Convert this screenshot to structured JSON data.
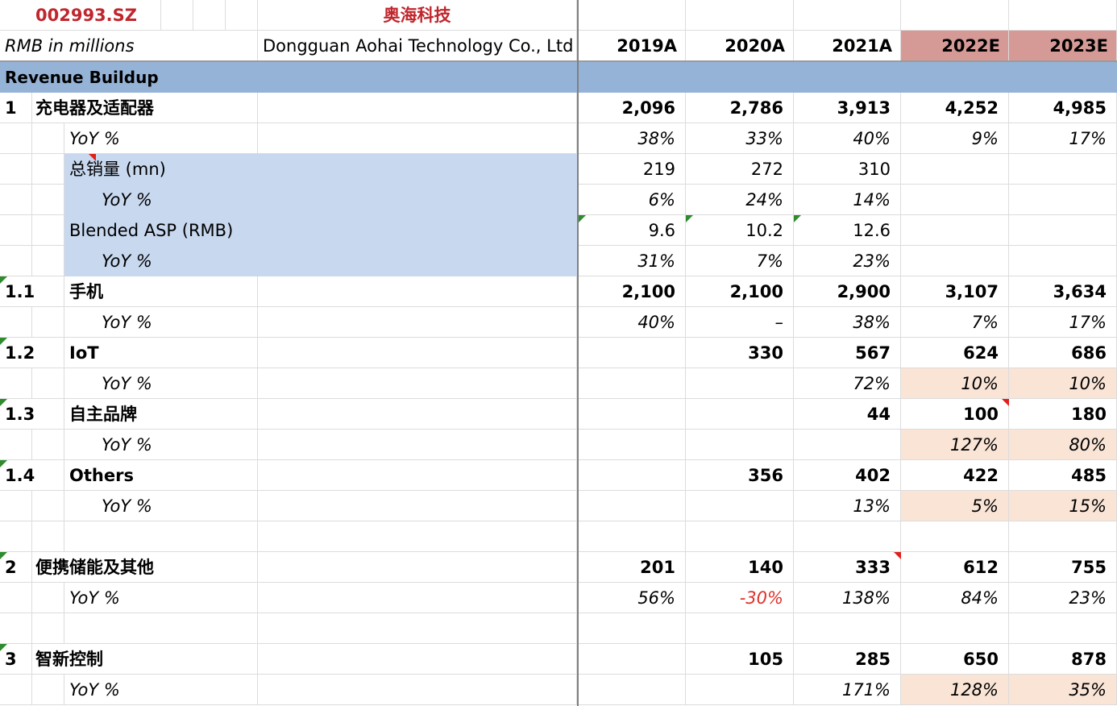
{
  "header": {
    "ticker": "002993.SZ",
    "company_cn": "奥海科技",
    "units": "RMB in millions",
    "company_en": "Dongguan Aohai Technology Co., Ltd",
    "years": [
      "2019A",
      "2020A",
      "2021A",
      "2022E",
      "2023E"
    ]
  },
  "section": {
    "title": "Revenue Buildup"
  },
  "rows": {
    "r1": {
      "id": "1",
      "label": "充电器及适配器",
      "values": [
        "2,096",
        "2,786",
        "3,913",
        "4,252",
        "4,985"
      ]
    },
    "r1_yoy": {
      "label": "YoY %",
      "values": [
        "38%",
        "33%",
        "40%",
        "9%",
        "17%"
      ]
    },
    "vol": {
      "label": "总销量 (mn)",
      "values": [
        "219",
        "272",
        "310"
      ]
    },
    "vol_yoy": {
      "label": "YoY %",
      "values": [
        "6%",
        "24%",
        "14%"
      ]
    },
    "asp": {
      "label": "Blended ASP (RMB)",
      "values": [
        "9.6",
        "10.2",
        "12.6"
      ]
    },
    "asp_yoy": {
      "label": "YoY %",
      "values": [
        "31%",
        "7%",
        "23%"
      ]
    },
    "r11": {
      "id": "1.1",
      "label": "手机",
      "values": [
        "2,100",
        "2,100",
        "2,900",
        "3,107",
        "3,634"
      ]
    },
    "r11_yoy": {
      "label": "YoY %",
      "values": [
        "40%",
        "–",
        "38%",
        "7%",
        "17%"
      ]
    },
    "r12": {
      "id": "1.2",
      "label": "IoT",
      "values": [
        "330",
        "567",
        "624",
        "686"
      ]
    },
    "r12_yoy": {
      "label": "YoY %",
      "values": [
        "72%",
        "10%",
        "10%"
      ]
    },
    "r13": {
      "id": "1.3",
      "label": "自主品牌",
      "values": [
        "44",
        "100",
        "180"
      ]
    },
    "r13_yoy": {
      "label": "YoY %",
      "values": [
        "127%",
        "80%"
      ]
    },
    "r14": {
      "id": "1.4",
      "label": "Others",
      "values": [
        "356",
        "402",
        "422",
        "485"
      ]
    },
    "r14_yoy": {
      "label": "YoY %",
      "values": [
        "13%",
        "5%",
        "15%"
      ]
    },
    "r2": {
      "id": "2",
      "label": "便携储能及其他",
      "values": [
        "201",
        "140",
        "333",
        "612",
        "755"
      ]
    },
    "r2_yoy": {
      "label": "YoY %",
      "values": [
        "56%",
        "-30%",
        "138%",
        "84%",
        "23%"
      ]
    },
    "r3": {
      "id": "3",
      "label": "智新控制",
      "values": [
        "105",
        "285",
        "650",
        "878"
      ]
    },
    "r3_yoy": {
      "label": "YoY %",
      "values": [
        "171%",
        "128%",
        "35%"
      ]
    }
  },
  "colors": {
    "ticker_red": "#c0262d",
    "section_band": "#95b3d7",
    "estimate_header": "#d69a96",
    "input_highlight": "#c8d8ef",
    "assumption_highlight": "#f9e4d6",
    "negative_red": "#e0302a",
    "comment_marker_green": "#2e8b2e",
    "comment_marker_red": "#e0201c"
  }
}
